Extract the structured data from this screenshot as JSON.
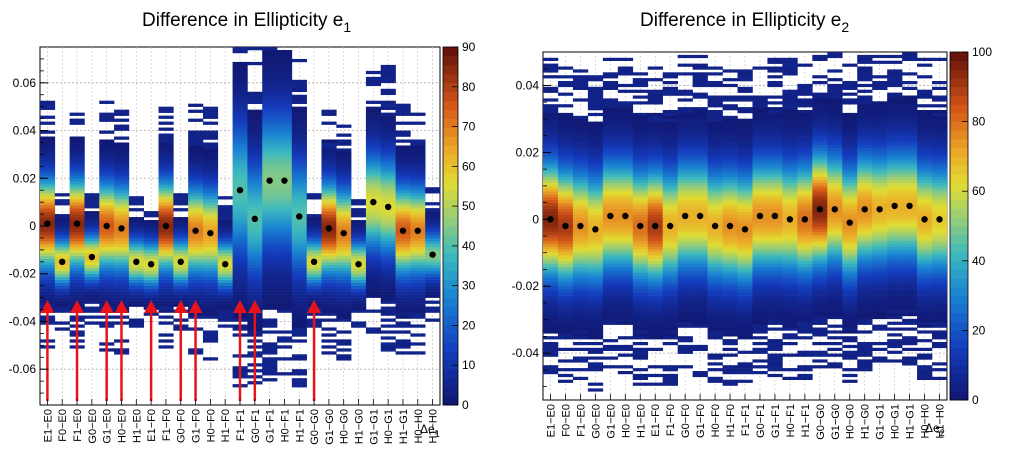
{
  "chart_data": [
    {
      "type": "heatmap",
      "title": "Difference in Ellipticity e",
      "title_sub": "1",
      "xlabel": "Δe",
      "xlabel_sub": "1",
      "ylabel": "",
      "ylim": [
        -0.075,
        0.075
      ],
      "yticks": [
        -0.06,
        -0.04,
        -0.02,
        0,
        0.02,
        0.04,
        0.06
      ],
      "ytick_labels": [
        "-0.06",
        "-0.04",
        "-0.02",
        "0",
        "0.02",
        "0.04",
        "0.06"
      ],
      "colorbar": {
        "min": 0,
        "max": 90,
        "ticks": [
          0,
          10,
          20,
          30,
          40,
          50,
          60,
          70,
          80,
          90
        ]
      },
      "categories": [
        "E1−E0",
        "F0−E0",
        "F1−E0",
        "G0−E0",
        "G1−E0",
        "H0−E0",
        "H1−E0",
        "E1−F0",
        "F1−F0",
        "G0−F0",
        "G1−F0",
        "H0−F0",
        "H1−F0",
        "F1−F1",
        "G0−F1",
        "G1−F1",
        "H0−F1",
        "H1−F1",
        "G0−G0",
        "G1−G0",
        "H0−G0",
        "H1−G0",
        "G1−G1",
        "H0−G1",
        "H1−G1",
        "H0−H0",
        "H1−H0"
      ],
      "means": [
        0.001,
        -0.015,
        0.001,
        -0.013,
        0.0,
        -0.001,
        -0.015,
        -0.016,
        0.0,
        -0.015,
        -0.002,
        -0.003,
        -0.016,
        0.015,
        0.003,
        0.019,
        0.019,
        0.004,
        -0.015,
        -0.001,
        -0.003,
        -0.016,
        0.01,
        0.008,
        -0.002,
        -0.002,
        -0.012
      ],
      "spreads": [
        0.022,
        0.012,
        0.022,
        0.012,
        0.022,
        0.022,
        0.012,
        0.012,
        0.022,
        0.012,
        0.022,
        0.022,
        0.012,
        0.035,
        0.03,
        0.035,
        0.035,
        0.03,
        0.012,
        0.022,
        0.022,
        0.012,
        0.025,
        0.025,
        0.022,
        0.022,
        0.012
      ],
      "peaks": [
        85,
        60,
        85,
        60,
        75,
        70,
        55,
        55,
        85,
        55,
        70,
        65,
        55,
        40,
        40,
        45,
        45,
        40,
        55,
        85,
        70,
        55,
        55,
        55,
        75,
        70,
        45
      ],
      "arrows_at": [
        0,
        2,
        4,
        5,
        7,
        9,
        10,
        13,
        14,
        18
      ]
    },
    {
      "type": "heatmap",
      "title": "Difference in Ellipticity e",
      "title_sub": "2",
      "xlabel": "Δe",
      "xlabel_sub": "2",
      "ylabel": "",
      "ylim": [
        -0.054,
        0.05
      ],
      "yticks": [
        -0.04,
        -0.02,
        0,
        0.02,
        0.04
      ],
      "ytick_labels": [
        "-0.04",
        "-0.02",
        "0",
        "0.02",
        "0.04"
      ],
      "colorbar": {
        "min": 0,
        "max": 100,
        "ticks": [
          0,
          20,
          40,
          60,
          80,
          100
        ]
      },
      "categories": [
        "E1−E0",
        "F0−E0",
        "F1−E0",
        "G0−E0",
        "G1−E0",
        "H0−E0",
        "H1−E0",
        "E1−F0",
        "F1−F0",
        "G0−F0",
        "G1−F0",
        "H0−F0",
        "H1−F0",
        "F1−F1",
        "G0−F1",
        "G1−F1",
        "H0−F1",
        "H1−F1",
        "G0−G0",
        "G1−G0",
        "H0−G0",
        "H1−G0",
        "G1−G1",
        "H0−G1",
        "H1−G1",
        "H0−H0",
        "H1−H0"
      ],
      "means": [
        0.0,
        -0.002,
        -0.002,
        -0.003,
        0.001,
        0.001,
        -0.002,
        -0.002,
        -0.002,
        0.001,
        0.001,
        -0.002,
        -0.002,
        -0.003,
        0.001,
        0.001,
        0.0,
        0.0,
        0.003,
        0.003,
        -0.001,
        0.003,
        0.003,
        0.004,
        0.004,
        0.0,
        0.0
      ],
      "spreads": [
        0.02,
        0.02,
        0.02,
        0.02,
        0.02,
        0.02,
        0.02,
        0.02,
        0.02,
        0.02,
        0.02,
        0.02,
        0.02,
        0.02,
        0.02,
        0.02,
        0.02,
        0.02,
        0.02,
        0.02,
        0.02,
        0.02,
        0.02,
        0.02,
        0.02,
        0.02,
        0.02
      ],
      "peaks": [
        95,
        90,
        75,
        70,
        75,
        75,
        80,
        90,
        70,
        70,
        70,
        70,
        75,
        75,
        75,
        75,
        70,
        80,
        95,
        75,
        75,
        75,
        70,
        70,
        70,
        70,
        65
      ],
      "arrows_at": []
    }
  ]
}
